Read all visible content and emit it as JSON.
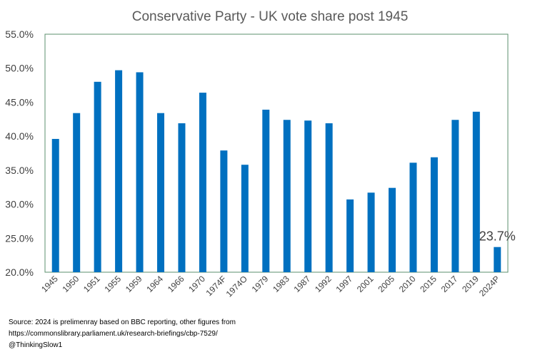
{
  "chart_data": {
    "type": "bar",
    "title": "Conservative Party - UK vote share post 1945",
    "categories": [
      "1945",
      "1950",
      "1951",
      "1955",
      "1959",
      "1964",
      "1966",
      "1970",
      "1974F",
      "1974O",
      "1979",
      "1983",
      "1987",
      "1992",
      "1997",
      "2001",
      "2005",
      "2010",
      "2015",
      "2017",
      "2019",
      "2024P"
    ],
    "values": [
      39.6,
      43.4,
      48.0,
      49.7,
      49.4,
      43.4,
      41.9,
      46.4,
      37.9,
      35.8,
      43.9,
      42.4,
      42.3,
      41.9,
      30.7,
      31.7,
      32.4,
      36.1,
      36.9,
      42.4,
      43.6,
      23.7
    ],
    "yticks": [
      "20.0%",
      "25.0%",
      "30.0%",
      "35.0%",
      "40.0%",
      "45.0%",
      "50.0%",
      "55.0%"
    ],
    "ylim": [
      20,
      55
    ],
    "grid": false,
    "bar_color": "#0070C0",
    "data_labels": [
      {
        "category": "2024P",
        "text": "23.7%"
      }
    ]
  },
  "notes": {
    "line1": "Source:  2024 is prelimenray  based on BBC reporting,  other figures from",
    "line2": " https://commonslibrary.parliament.uk/research-briefings/cbp-7529/",
    "line3": "@ThinkingSlow1"
  }
}
